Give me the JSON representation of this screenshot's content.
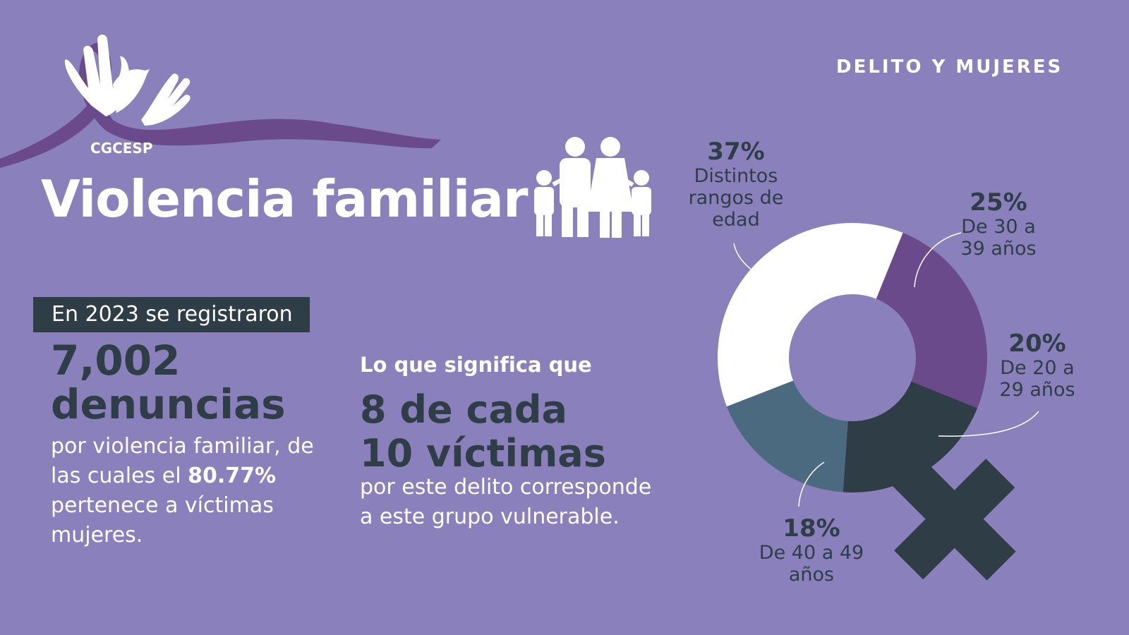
{
  "header": {
    "section": "DELITO Y MUJERES",
    "logo": "CGCESP",
    "title": "Violencia familiar"
  },
  "left": {
    "intro": "En 2023 se registraron",
    "number": "7,002",
    "unit": "denuncias",
    "text_before": "por violencia familiar, de las cuales el",
    "highlight": "80.77%",
    "text_after": "pertenece a víctimas mujeres."
  },
  "middle": {
    "lead": "Lo que significa que",
    "headline": "8 de cada 10 víctimas",
    "text": "por este delito corresponde a este grupo vulnerable."
  },
  "chart_data": {
    "type": "donut",
    "categories": [
      "De 30 a 39 años",
      "De 20 a 29 años",
      "De 40 a 49 años",
      "Distintos rangos de edad"
    ],
    "values": [
      25,
      20,
      18,
      37
    ],
    "value_labels": [
      "25%",
      "20%",
      "18%",
      "37%"
    ],
    "colors": [
      "#6a4a8a",
      "#2f3d46",
      "#4b6a80",
      "#ffffff"
    ]
  }
}
